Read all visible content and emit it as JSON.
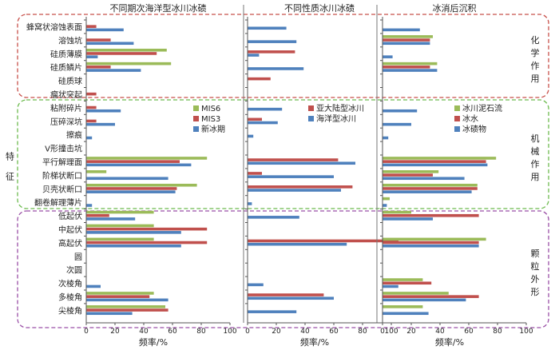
{
  "chart_data": {
    "type": "bar",
    "orientation": "horizontal",
    "xlabel": "频率/%",
    "xlim": [
      0,
      100
    ],
    "xticks": [
      0,
      20,
      40,
      60,
      80,
      100
    ],
    "axis_side_label": "特征",
    "categories": [
      "蜂窝状溶蚀表面",
      "溶蚀坑",
      "硅质薄膜",
      "硅质鳞片",
      "硅质球",
      "瘤状突起",
      "粘附碎片",
      "压碎深坑",
      "擦痕",
      "V形撞击坑",
      "平行解理面",
      "阶梯状断口",
      "贝壳状断口",
      "翻卷解理薄片",
      "低起伏",
      "中起伏",
      "高起伏",
      "圆",
      "次圆",
      "次棱角",
      "多棱角",
      "尖棱角"
    ],
    "groups": [
      {
        "label": "化学作用",
        "rows": [
          0,
          5
        ],
        "color": "#c8504a"
      },
      {
        "label": "机械作用",
        "rows": [
          6,
          13
        ],
        "color": "#6dbb4f"
      },
      {
        "label": "颗粒外形",
        "rows": [
          14,
          21
        ],
        "color": "#9a4fa6"
      }
    ],
    "colors": {
      "green": "#9bbb59",
      "red": "#c0504d",
      "blue": "#4f81bd"
    },
    "panels": [
      {
        "title": "不同期次海洋型冰川冰碛",
        "legend": [
          "MIS6",
          "MIS3",
          "新冰期"
        ],
        "series": [
          {
            "name": "MIS6",
            "color": "#9bbb59",
            "values": [
              0,
              0,
              56,
              59,
              0,
              0,
              0,
              0,
              0,
              0,
              84,
              14,
              77,
              0,
              47,
              47,
              47,
              0,
              0,
              0,
              47,
              55
            ]
          },
          {
            "name": "MIS3",
            "color": "#c0504d",
            "values": [
              7,
              17,
              49,
              17,
              0,
              7,
              7,
              7,
              0,
              0,
              65,
              0,
              63,
              0,
              16,
              84,
              84,
              0,
              0,
              0,
              44,
              57
            ]
          },
          {
            "name": "新冰期",
            "color": "#4f81bd",
            "values": [
              26,
              33,
              8,
              38,
              0,
              0,
              24,
              20,
              4,
              0,
              73,
              57,
              62,
              4,
              34,
              66,
              66,
              0,
              0,
              10,
              57,
              32
            ]
          }
        ]
      },
      {
        "title": "不同性质冰川冰碛",
        "legend": [
          "亚大陆型冰川",
          "海洋型冰川"
        ],
        "series": [
          {
            "name": "亚大陆型冰川",
            "color": "#c0504d",
            "values": [
              0,
              0,
              33,
              0,
              16,
              0,
              0,
              10,
              0,
              0,
              63,
              10,
              73,
              0,
              0,
              0,
              105,
              0,
              0,
              0,
              53,
              0
            ]
          },
          {
            "name": "海洋型冰川",
            "color": "#4f81bd",
            "values": [
              27,
              34,
              8,
              39,
              0,
              0,
              24,
              21,
              4,
              0,
              75,
              60,
              65,
              3,
              36,
              0,
              69,
              0,
              0,
              11,
              60,
              34
            ]
          }
        ]
      },
      {
        "title": "冰消后沉积",
        "legend": [
          "冰川泥石流",
          "冰水",
          "冰碛物"
        ],
        "series": [
          {
            "name": "冰川泥石流",
            "color": "#9bbb59",
            "values": [
              0,
              35,
              0,
              38,
              0,
              0,
              0,
              0,
              0,
              0,
              79,
              39,
              66,
              5,
              20,
              0,
              72,
              0,
              0,
              28,
              46,
              28
            ]
          },
          {
            "name": "冰水",
            "color": "#c0504d",
            "values": [
              0,
              33,
              0,
              33,
              0,
              0,
              0,
              0,
              0,
              0,
              72,
              35,
              66,
              0,
              67,
              0,
              67,
              0,
              0,
              34,
              67,
              0
            ]
          },
          {
            "name": "冰碛物",
            "color": "#4f81bd",
            "values": [
              26,
              33,
              7,
              38,
              0,
              0,
              24,
              20,
              4,
              0,
              73,
              57,
              62,
              3,
              35,
              0,
              67,
              0,
              0,
              11,
              58,
              32
            ]
          }
        ]
      }
    ]
  }
}
